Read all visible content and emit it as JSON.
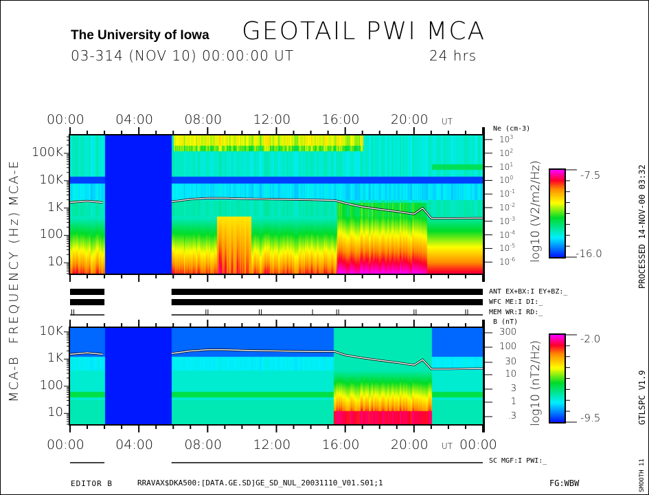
{
  "header": {
    "institution": "The University of Iowa",
    "title": "GEOTAIL PWI MCA",
    "date_line": "03-314 (NOV 10) 00:00:00 UT",
    "duration": "24 hrs"
  },
  "time_labels": [
    "00:00",
    "04:00",
    "08:00",
    "12:00",
    "16:00",
    "20:00",
    "00:00"
  ],
  "ut_label": "UT",
  "y_axis_label": "FREQUENCY (Hz)",
  "status": {
    "ant": "ANT EX+BX:I  EY+BZ:_",
    "wfc": "WFC ME:I     DI:_",
    "mem": "MEM WR:I     RD:_",
    "sc": "SC MGF:I    PWI:_"
  },
  "footer": {
    "editor": "EDITOR B",
    "file": "RRAVAX$DKA500:[DATA.GE.SD]GE_SD_NUL_20031110_V01.S01;1",
    "fg": "FG:WBW"
  },
  "side": {
    "processed": "PROCESSED 14-NOV-00   03:32",
    "version": "GTLSPC   V1.9",
    "smooth": "SMOOTH 11"
  },
  "colors": {
    "background": "#ffffff",
    "gap": "#0018ff",
    "line": "#ffffff"
  },
  "chart_data": [
    {
      "type": "heatmap",
      "name": "MCA-E",
      "panel_label": "MCA-E",
      "xlabel": "UT",
      "x_range_hours": [
        0,
        24
      ],
      "x_ticks": [
        "00:00",
        "04:00",
        "08:00",
        "12:00",
        "16:00",
        "20:00"
      ],
      "y_scale": "log",
      "y_range_hz": [
        4,
        450000
      ],
      "y_ticks": [
        "100K",
        "10K",
        "1K",
        "100",
        "10"
      ],
      "data_gap_hours": [
        2.0,
        5.9
      ],
      "colorbar": {
        "label": "log10 (V2/m2/Hz)",
        "max": "-7.5",
        "min": "-16.0"
      },
      "right_axis": {
        "title": "Ne (cm-3)",
        "ticks": [
          "10^3",
          "10^2",
          "10^1",
          "10^0",
          "10^-1",
          "10^-2",
          "10^-3",
          "10^-4",
          "10^-5",
          "10^-6"
        ]
      },
      "density_line": {
        "hours": [
          0,
          1,
          1.9,
          5.9,
          7,
          8,
          9,
          10,
          12,
          14,
          15.4,
          16,
          17,
          18,
          19,
          20,
          20.5,
          20.8,
          21,
          22,
          24
        ],
        "freq_hz": [
          1600,
          1800,
          1600,
          1700,
          2100,
          2300,
          2300,
          2200,
          2100,
          2000,
          1900,
          1500,
          1100,
          900,
          750,
          600,
          1000,
          600,
          420,
          420,
          430
        ]
      }
    },
    {
      "type": "heatmap",
      "name": "MCA-B",
      "panel_label": "MCA-B",
      "xlabel": "UT",
      "x_range_hours": [
        0,
        24
      ],
      "x_ticks": [
        "00:00",
        "04:00",
        "08:00",
        "12:00",
        "16:00",
        "20:00",
        "00:00"
      ],
      "y_scale": "log",
      "y_range_hz": [
        4,
        14000
      ],
      "y_ticks": [
        "10K",
        "1K",
        "100",
        "10"
      ],
      "data_gap_hours": [
        2.0,
        5.9
      ],
      "colorbar": {
        "label": "log10 (nT2/Hz)",
        "max": "-2.0",
        "min": "-9.5"
      },
      "right_axis": {
        "title": "B (nT)",
        "ticks": [
          "300",
          "100",
          "30",
          "10",
          "3",
          "1",
          ".3"
        ]
      },
      "density_line": {
        "hours": [
          0,
          1,
          1.9,
          5.9,
          7,
          8,
          9,
          10,
          12,
          14,
          15.4,
          16,
          17,
          18,
          19,
          20,
          20.5,
          20.8,
          21,
          22,
          24
        ],
        "freq_hz": [
          1500,
          1700,
          1500,
          1600,
          2000,
          2200,
          2200,
          2100,
          2000,
          1900,
          1900,
          1400,
          1100,
          900,
          750,
          600,
          950,
          600,
          430,
          430,
          450
        ]
      }
    }
  ]
}
